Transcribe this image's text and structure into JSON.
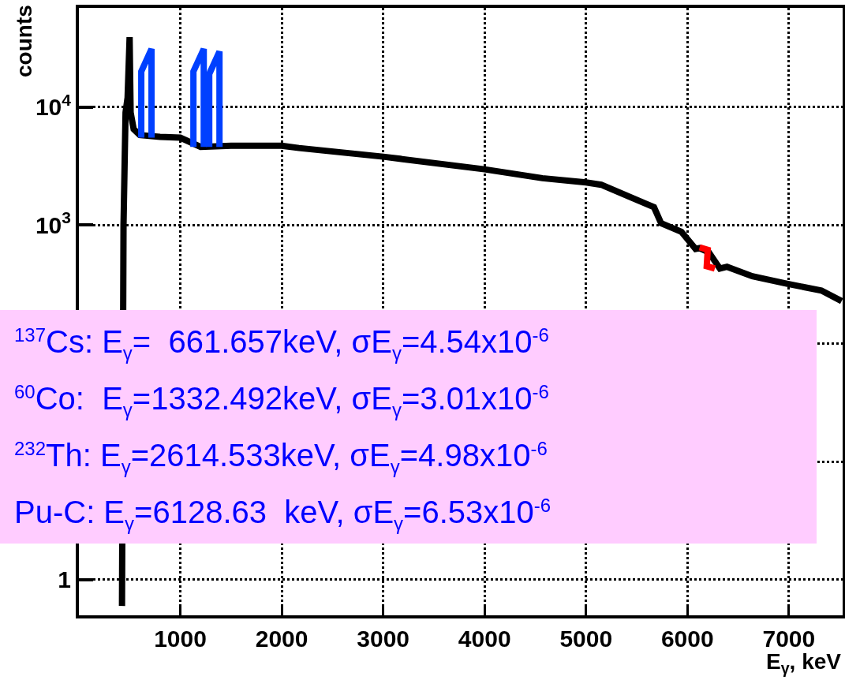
{
  "chart_data": {
    "type": "line",
    "xlabel": "E$_{γ}$, keV",
    "ylabel": "counts",
    "log": "y",
    "grid": true,
    "xlim": [
      0,
      7530
    ],
    "xticks": [
      1000,
      2000,
      3000,
      4000,
      5000,
      6000,
      7000
    ],
    "ylim": [
      0.5,
      69000
    ],
    "yticks": [
      {
        "value": 1,
        "label": "1"
      },
      {
        "value": 10,
        "label": null
      },
      {
        "value": 100,
        "label": null
      },
      {
        "value": 1000,
        "label": "10$^{3}$"
      },
      {
        "value": 10000,
        "label": "10$^{4}$"
      }
    ],
    "series": [
      {
        "color": "#000000",
        "x": [
          425,
          440,
          460,
          480,
          500,
          510,
          540,
          600,
          800,
          1000,
          1200,
          1500,
          2000,
          2170,
          3000,
          4000,
          4570,
          5000,
          5150,
          5670,
          5740,
          5940,
          6080,
          6120,
          6210,
          6320,
          6390,
          6640,
          6980,
          7320,
          7520
        ],
        "values": [
          0.6,
          1000,
          9000,
          12000,
          39000,
          9000,
          6500,
          5800,
          5600,
          5500,
          4600,
          4700,
          4700,
          4500,
          3800,
          2970,
          2500,
          2300,
          2200,
          1420,
          1040,
          880,
          630,
          640,
          590,
          430,
          445,
          370,
          320,
          280,
          228
        ]
      },
      {
        "color": "#0040ff",
        "x": [
          615,
          615,
          716,
          716
        ],
        "values": [
          5500,
          20000,
          31000,
          5500
        ]
      },
      {
        "color": "#0040ff",
        "x": [
          1129,
          1129,
          1231,
          1231
        ],
        "values": [
          4600,
          20000,
          31000,
          4600
        ]
      },
      {
        "color": "#0040ff",
        "x": [
          1285,
          1285,
          1386,
          1386
        ],
        "values": [
          4600,
          19000,
          29500,
          4600
        ]
      },
      {
        "color": "#ff0000",
        "x": [
          6120,
          6200,
          6190,
          6270
        ],
        "values": [
          650,
          620,
          450,
          430
        ]
      }
    ],
    "annotations": [
      "$^{137}$Cs: E$_{γ}$=  661.657keV, σE$_{γ}$=4.54x10$^{-6}$",
      "$^{60}$Co:  E$_{γ}$=1332.492keV, σE$_{γ}$=3.01x10$^{-6}$",
      "$^{232}$Th: E$_{γ}$=2614.533keV, σE$_{γ}$=4.98x10$^{-6}$",
      "Pu-C: E$_{γ}$=6128.63  keV, σE$_{γ}$=6.53x10$^{-6}$"
    ]
  }
}
